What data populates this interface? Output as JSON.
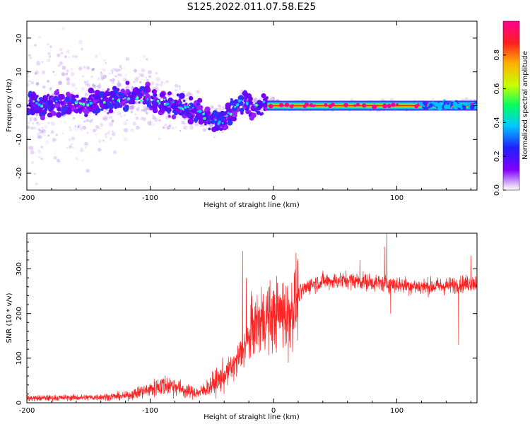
{
  "title": "S125.2022.011.07.58.E25",
  "chart_data": [
    {
      "type": "heatmap",
      "xlabel": "Height of straight line (km)",
      "ylabel": "Frequency (Hz)",
      "xlim": [
        -200,
        165
      ],
      "ylim": [
        -25,
        25
      ],
      "xticks": [
        -200,
        -100,
        0,
        100
      ],
      "yticks": [
        -20,
        -10,
        0,
        10,
        20
      ],
      "colorbar": {
        "label": "Normalized spectral amplitude",
        "range": [
          0,
          1
        ],
        "ticks": [
          "0.0",
          "0.2",
          "0.4",
          "0.6",
          "0.8"
        ],
        "colormap": [
          "#e8d8f8",
          "#8000ff",
          "#2020ff",
          "#00c8ff",
          "#00ff60",
          "#c8ff00",
          "#ffb000",
          "#ff2020",
          "#ff0090"
        ]
      },
      "ridge": [
        [
          -200,
          0.5
        ],
        [
          -180,
          0.2
        ],
        [
          -160,
          0.5
        ],
        [
          -140,
          1.0
        ],
        [
          -120,
          2.5
        ],
        [
          -100,
          2.0
        ],
        [
          -80,
          0.0
        ],
        [
          -65,
          -1.0
        ],
        [
          -55,
          -3.0
        ],
        [
          -45,
          -5.0
        ],
        [
          -38,
          -3.5
        ],
        [
          -30,
          0.0
        ],
        [
          -25,
          2.0
        ],
        [
          -18,
          0.0
        ],
        [
          -10,
          0.2
        ],
        [
          -5,
          0.5
        ],
        [
          0,
          1.5
        ],
        [
          5,
          0.3
        ],
        [
          10,
          0.0
        ],
        [
          60,
          0.0
        ],
        [
          120,
          0.0
        ],
        [
          150,
          0.5
        ],
        [
          165,
          0.8
        ]
      ],
      "band": {
        "x_start": -5,
        "x_end": 165,
        "y": 0,
        "label": "steady tone near 0 Hz"
      },
      "scatter_spread": [
        [
          -200,
          25
        ],
        [
          -150,
          20
        ],
        [
          -110,
          14
        ],
        [
          -80,
          9
        ],
        [
          -55,
          6
        ],
        [
          -30,
          3
        ],
        [
          0,
          1.5
        ],
        [
          165,
          1.5
        ]
      ]
    },
    {
      "type": "line",
      "xlabel": "Height of straight line (km)",
      "ylabel": "SNR (10 * v/v)",
      "xlim": [
        -200,
        165
      ],
      "ylim": [
        0,
        380
      ],
      "xticks": [
        -200,
        -100,
        0,
        100
      ],
      "yticks": [
        0,
        100,
        200,
        300
      ],
      "color": "#ff2020",
      "trend": [
        [
          -200,
          10
        ],
        [
          -150,
          12
        ],
        [
          -120,
          15
        ],
        [
          -100,
          30
        ],
        [
          -90,
          40
        ],
        [
          -80,
          38
        ],
        [
          -70,
          25
        ],
        [
          -60,
          22
        ],
        [
          -50,
          40
        ],
        [
          -40,
          60
        ],
        [
          -30,
          90
        ],
        [
          -25,
          120
        ],
        [
          -20,
          140
        ],
        [
          -15,
          175
        ],
        [
          -10,
          180
        ],
        [
          -5,
          190
        ],
        [
          0,
          195
        ],
        [
          5,
          200
        ],
        [
          10,
          200
        ],
        [
          15,
          210
        ],
        [
          20,
          240
        ],
        [
          25,
          255
        ],
        [
          30,
          265
        ],
        [
          40,
          272
        ],
        [
          60,
          275
        ],
        [
          80,
          270
        ],
        [
          100,
          265
        ],
        [
          120,
          260
        ],
        [
          140,
          262
        ],
        [
          165,
          270
        ]
      ],
      "spikes": [
        [
          -25,
          340
        ],
        [
          -22,
          280
        ],
        [
          -18,
          250
        ],
        [
          -10,
          260
        ],
        [
          -5,
          250
        ],
        [
          8,
          270
        ],
        [
          12,
          90
        ],
        [
          70,
          320
        ],
        [
          90,
          350
        ],
        [
          92,
          385
        ],
        [
          95,
          200
        ],
        [
          150,
          130
        ],
        [
          160,
          330
        ]
      ]
    }
  ]
}
